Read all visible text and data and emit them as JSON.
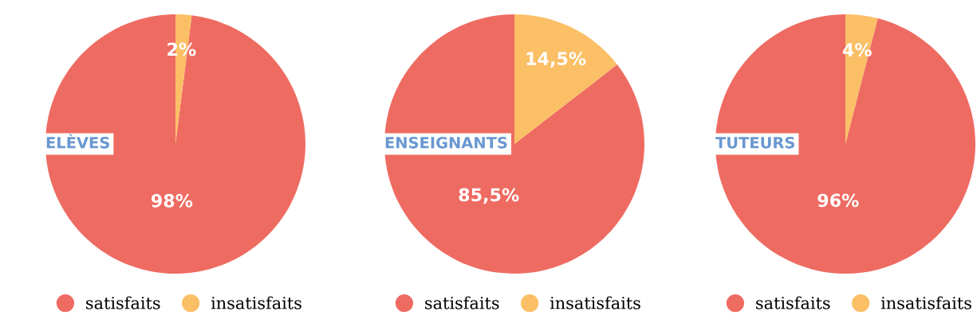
{
  "chart_data": [
    {
      "type": "pie",
      "title": "ELÈVES",
      "categories": [
        "satisfaits",
        "insatisfaits"
      ],
      "values": [
        98,
        2
      ],
      "colors": [
        "#ee6b62",
        "#fbbf66"
      ],
      "value_labels": [
        "98%",
        "2%"
      ],
      "legend": "bottom"
    },
    {
      "type": "pie",
      "title": "ENSEIGNANTS",
      "categories": [
        "satisfaits",
        "insatisfaits"
      ],
      "values": [
        85.5,
        14.5
      ],
      "colors": [
        "#ee6b62",
        "#fbbf66"
      ],
      "value_labels": [
        "85,5%",
        "14,5%"
      ],
      "legend": "bottom"
    },
    {
      "type": "pie",
      "title": "TUTEURS",
      "categories": [
        "satisfaits",
        "insatisfaits"
      ],
      "values": [
        96,
        4
      ],
      "colors": [
        "#ee6b62",
        "#fbbf66"
      ],
      "value_labels": [
        "96%",
        "4%"
      ],
      "legend": "bottom"
    }
  ]
}
